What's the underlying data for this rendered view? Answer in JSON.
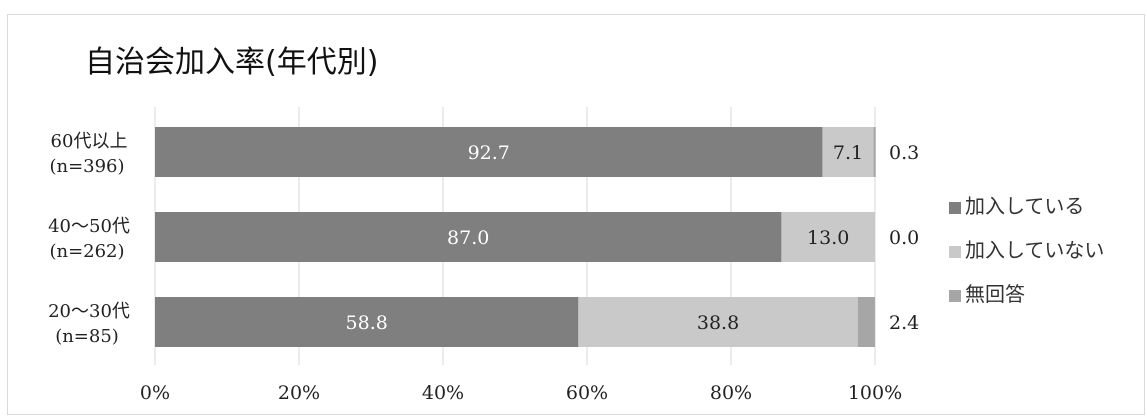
{
  "chart_data": {
    "type": "bar",
    "orientation": "horizontal",
    "stacked": "percent",
    "title": "自治会加入率(年代別)",
    "categories": [
      [
        "60代以上",
        "(n=396)"
      ],
      [
        "40～50代",
        "(n=262)"
      ],
      [
        "20～30代",
        "(n=85)"
      ]
    ],
    "series": [
      {
        "name": "加入している",
        "color": "#7f7f7f",
        "label_color": "#ffffff",
        "values": [
          92.7,
          87.0,
          58.8
        ]
      },
      {
        "name": "加入していない",
        "color": "#c9c9c9",
        "label_color": "#222222",
        "values": [
          7.1,
          13.0,
          38.8
        ]
      },
      {
        "name": "無回答",
        "color": "#a6a6a6",
        "label_color": "#222222",
        "values": [
          0.3,
          0.0,
          2.4
        ]
      }
    ],
    "data_labels": [
      [
        "92.7",
        "7.1",
        "0.3"
      ],
      [
        "87.0",
        "13.0",
        "0.0"
      ],
      [
        "58.8",
        "38.8",
        "2.4"
      ]
    ],
    "x_ticks": [
      "0%",
      "20%",
      "40%",
      "60%",
      "80%",
      "100%"
    ],
    "xlim": [
      0,
      100
    ],
    "grid": "vertical",
    "legend": "right"
  }
}
